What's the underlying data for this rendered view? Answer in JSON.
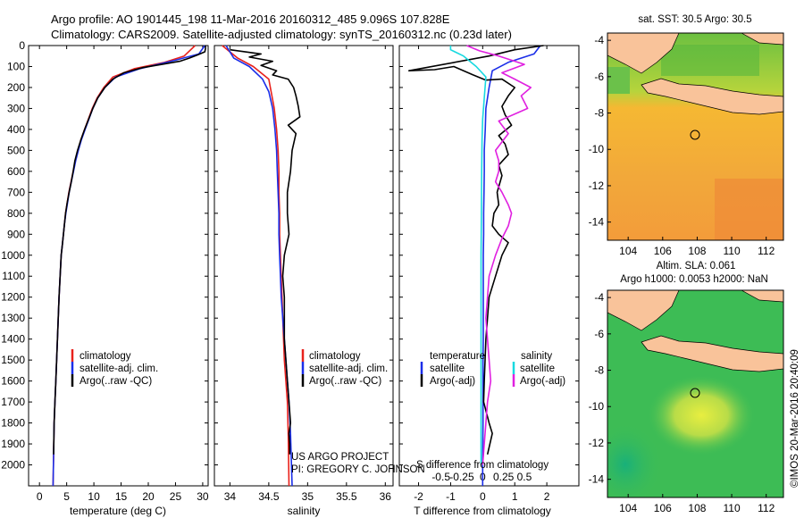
{
  "header": {
    "line1": "Argo profile: AO 1901445_198 11-Mar-2016 20160312_485 9.096S 107.828E",
    "line2": "Climatology: CARS2009. Satellite-adjusted climatology: synTS_20160312.nc (0.23d later)"
  },
  "chart_data": [
    {
      "type": "line",
      "panel": "temperature",
      "xlabel": "temperature (deg C)",
      "ylabel": "",
      "xlim": [
        -2,
        31
      ],
      "ylim": [
        2100,
        0
      ],
      "xticks": [
        0,
        5,
        10,
        15,
        20,
        25,
        30
      ],
      "yticks": [
        0,
        100,
        200,
        300,
        400,
        500,
        600,
        700,
        800,
        900,
        1000,
        1100,
        1200,
        1300,
        1400,
        1500,
        1600,
        1700,
        1800,
        1900,
        2000
      ],
      "legend": [
        "climatology",
        "satellite-adj. clim.",
        "Argo(..raw -QC)"
      ],
      "series": [
        {
          "name": "climatology",
          "color": "#e8211c",
          "x": [
            28.6,
            26.6,
            23,
            17.5,
            13.5,
            11.8,
            10.6,
            9.7,
            9.0,
            8.3,
            7.6,
            7.1,
            6.6,
            6.2,
            5.8,
            5.4,
            5.1,
            4.8,
            4.6,
            4.4,
            4.2,
            4.0,
            3.8,
            3.6,
            3.45,
            3.3,
            3.15,
            3.0,
            2.85,
            2.7,
            2.6,
            2.5
          ],
          "y": [
            0,
            50,
            80,
            110,
            150,
            200,
            250,
            300,
            350,
            400,
            450,
            500,
            550,
            600,
            650,
            700,
            750,
            800,
            850,
            900,
            950,
            1000,
            1100,
            1200,
            1300,
            1400,
            1500,
            1600,
            1700,
            1800,
            1950,
            2100
          ]
        },
        {
          "name": "satellite-adj. clim.",
          "color": "#1b2ee8",
          "x": [
            30.4,
            29.3,
            25,
            18.5,
            14.0,
            12.0,
            10.7,
            9.8,
            9.1,
            8.4,
            7.7,
            7.15,
            6.65,
            6.25,
            5.85,
            5.45,
            5.15,
            4.85,
            4.6,
            4.4,
            4.2,
            4.0,
            3.8,
            3.6,
            3.45,
            3.3,
            3.15,
            3.0,
            2.85,
            2.7,
            2.6,
            2.5
          ],
          "y": [
            0,
            40,
            70,
            110,
            150,
            200,
            250,
            300,
            350,
            400,
            450,
            500,
            550,
            600,
            650,
            700,
            750,
            800,
            850,
            900,
            950,
            1000,
            1100,
            1200,
            1300,
            1400,
            1500,
            1600,
            1700,
            1800,
            1950,
            2100
          ]
        },
        {
          "name": "Argo(..raw -QC)",
          "color": "#000000",
          "x": [
            30.5,
            30.5,
            30.4,
            29.0,
            27.5,
            25.8,
            22.5,
            19,
            15.5,
            13.5,
            12.0,
            10.7,
            9.8,
            9.05,
            8.3,
            7.6,
            7.0,
            6.5,
            6.2,
            5.85,
            5.45,
            5.1,
            4.8,
            4.6,
            4.4,
            4.2,
            4.0,
            3.8,
            3.6,
            3.45,
            3.3,
            3.15,
            3.0,
            2.85,
            2.7,
            2.6
          ],
          "y": [
            0,
            15,
            30,
            45,
            60,
            75,
            90,
            105,
            130,
            160,
            200,
            250,
            300,
            350,
            400,
            450,
            500,
            550,
            600,
            650,
            700,
            750,
            800,
            850,
            900,
            950,
            1000,
            1100,
            1200,
            1300,
            1400,
            1500,
            1600,
            1700,
            1800,
            1950
          ]
        }
      ]
    },
    {
      "type": "line",
      "panel": "salinity",
      "xlabel": "salinity",
      "ylabel": "",
      "xlim": [
        33.8,
        36.1
      ],
      "ylim": [
        2100,
        0
      ],
      "xticks": [
        34,
        34.5,
        35,
        35.5,
        36
      ],
      "legend": [
        "climatology",
        "satellite-adj. clim.",
        "Argo(..raw -QC)"
      ],
      "annotations": [
        "US ARGO PROJECT",
        "PI: GREGORY C. JOHNSON"
      ],
      "series": [
        {
          "name": "climatology",
          "color": "#e8211c",
          "x": [
            33.9,
            34.1,
            34.3,
            34.5,
            34.53,
            34.57,
            34.6,
            34.62,
            34.63,
            34.63,
            34.64,
            34.64,
            34.65,
            34.66,
            34.67,
            34.68,
            34.69,
            34.7,
            34.72,
            34.74,
            34.75,
            34.76
          ],
          "y": [
            0,
            60,
            100,
            160,
            220,
            300,
            400,
            500,
            600,
            700,
            800,
            900,
            1000,
            1100,
            1200,
            1300,
            1400,
            1500,
            1600,
            1700,
            1850,
            2100
          ]
        },
        {
          "name": "satellite-adj. clim.",
          "color": "#1b2ee8",
          "x": [
            33.95,
            34.05,
            34.25,
            34.42,
            34.5,
            34.55,
            34.58,
            34.6,
            34.61,
            34.62,
            34.63,
            34.63,
            34.64,
            34.65,
            34.66,
            34.68,
            34.7,
            34.72,
            34.74,
            34.76,
            34.78,
            34.8
          ],
          "y": [
            0,
            60,
            100,
            160,
            220,
            300,
            400,
            500,
            600,
            700,
            800,
            900,
            1000,
            1100,
            1200,
            1300,
            1400,
            1500,
            1600,
            1700,
            1850,
            2100
          ]
        },
        {
          "name": "Argo(..raw -QC)",
          "color": "#000000",
          "x": [
            34.0,
            34.4,
            34.25,
            34.55,
            34.4,
            34.6,
            34.55,
            34.75,
            34.82,
            34.85,
            34.88,
            34.9,
            34.75,
            34.85,
            34.8,
            34.78,
            34.74,
            34.74,
            34.76,
            34.7,
            34.68,
            34.7,
            34.7,
            34.7,
            34.72,
            34.74,
            34.76,
            34.78,
            34.76,
            34.77,
            34.77
          ],
          "y": [
            20,
            40,
            55,
            75,
            95,
            120,
            140,
            160,
            200,
            240,
            290,
            340,
            380,
            420,
            500,
            600,
            700,
            800,
            900,
            1000,
            1100,
            1200,
            1300,
            1400,
            1500,
            1600,
            1700,
            1800,
            1850,
            1900,
            1950
          ]
        }
      ]
    },
    {
      "type": "line",
      "panel": "difference",
      "xlabel": "T difference from climatology",
      "xlabel_top": "S difference from climatology",
      "xlim": [
        -2.6,
        3.0
      ],
      "ylim": [
        2100,
        0
      ],
      "xticks": [
        -2,
        -1,
        0,
        1,
        2
      ],
      "xticks_top": [
        -0.5,
        -0.25,
        0,
        0.25,
        0.5
      ],
      "legend_groups": [
        {
          "title": "temperature",
          "entries": [
            "satellite",
            "Argo(-adj)"
          ]
        },
        {
          "title": "salinity",
          "entries": [
            "satellite",
            "Argo(-adj)"
          ]
        }
      ],
      "series": [
        {
          "name": "temperature satellite",
          "color": "#1b2ee8",
          "x": [
            1.8,
            1.6,
            0.8,
            0.3,
            0.2,
            0.1,
            0.08,
            0.05,
            0.05,
            0.04,
            0.03,
            0.03,
            0.02,
            0.02,
            0.02,
            0.01,
            0.01,
            0.01,
            0.0,
            0.0
          ],
          "y": [
            0,
            40,
            80,
            120,
            200,
            300,
            400,
            500,
            600,
            700,
            800,
            900,
            1000,
            1200,
            1400,
            1500,
            1600,
            1800,
            2000,
            2100
          ]
        },
        {
          "name": "temperature Argo(-adj)",
          "color": "#000000",
          "x": [
            1.9,
            1.0,
            0.2,
            -2.3,
            -1.5,
            -0.9,
            -0.3,
            0.1,
            0.6,
            1.0,
            0.8,
            0.6,
            0.7,
            0.9,
            0.5,
            0.7,
            0.8,
            0.5,
            0.6,
            0.45,
            0.5,
            0.35,
            0.3,
            0.5,
            0.8,
            0.6,
            0.4,
            0.2,
            0.1,
            0.05,
            0.03,
            0.2,
            0.3,
            0.15
          ],
          "y": [
            0,
            20,
            50,
            120,
            115,
            100,
            140,
            165,
            160,
            200,
            240,
            290,
            330,
            380,
            430,
            470,
            520,
            570,
            620,
            700,
            760,
            800,
            860,
            900,
            940,
            1000,
            1100,
            1200,
            1400,
            1600,
            1700,
            1800,
            1850,
            1950
          ]
        },
        {
          "name": "salinity satellite",
          "color": "#18d9e0",
          "x": [
            -1.0,
            -1.0,
            -0.6,
            -0.2,
            0.1,
            0.05,
            0.0,
            -0.02,
            -0.03,
            -0.04,
            -0.05,
            -0.05,
            -0.05,
            -0.05,
            -0.05,
            -0.05,
            -0.05,
            -0.05
          ],
          "y": [
            0,
            20,
            50,
            100,
            150,
            250,
            350,
            450,
            600,
            800,
            1000,
            1200,
            1400,
            1500,
            1700,
            1800,
            1900,
            2000
          ]
        },
        {
          "name": "salinity Argo(-adj)",
          "color": "#e020e0",
          "x": [
            -0.5,
            -0.1,
            0.5,
            0.9,
            1.3,
            0.6,
            1.0,
            1.5,
            1.2,
            1.4,
            0.5,
            0.8,
            0.4,
            0.5,
            0.5,
            0.4,
            0.6,
            0.8,
            0.9,
            0.8,
            0.6,
            0.4,
            0.2,
            0.15,
            0.1,
            0.15,
            0.2,
            0.25,
            0.15,
            0.1,
            0.05,
            0.0
          ],
          "y": [
            0,
            25,
            50,
            70,
            90,
            130,
            160,
            200,
            240,
            300,
            360,
            420,
            500,
            550,
            600,
            650,
            700,
            760,
            800,
            860,
            920,
            1000,
            1100,
            1200,
            1300,
            1400,
            1500,
            1600,
            1700,
            1800,
            1900,
            2000
          ]
        }
      ]
    },
    {
      "type": "heatmap",
      "panel": "sst-map",
      "title": "sat. SST: 30.5 Argo: 30.5",
      "xlim": [
        102.8,
        113.0
      ],
      "ylim": [
        -15.0,
        -3.6
      ],
      "xticks": [
        104,
        106,
        108,
        110,
        112
      ],
      "yticks": [
        -4,
        -6,
        -8,
        -10,
        -12,
        -14
      ],
      "marker": {
        "lon": 107.83,
        "lat": -9.1
      }
    },
    {
      "type": "heatmap",
      "panel": "sla-map",
      "title": "Altim. SLA: 0.061",
      "subtitle": "Argo h1000: 0.0053 h2000: NaN",
      "xlim": [
        102.8,
        113.0
      ],
      "ylim": [
        -15.0,
        -3.6
      ],
      "xticks": [
        104,
        106,
        108,
        110,
        112
      ],
      "yticks": [
        -4,
        -6,
        -8,
        -10,
        -12,
        -14
      ],
      "marker": {
        "lon": 107.83,
        "lat": -9.1
      }
    }
  ],
  "credit": "©IMOS 20-Mar-2016 20:40:09",
  "colors": {
    "land": "#f9c39a",
    "marker": "#000000"
  }
}
